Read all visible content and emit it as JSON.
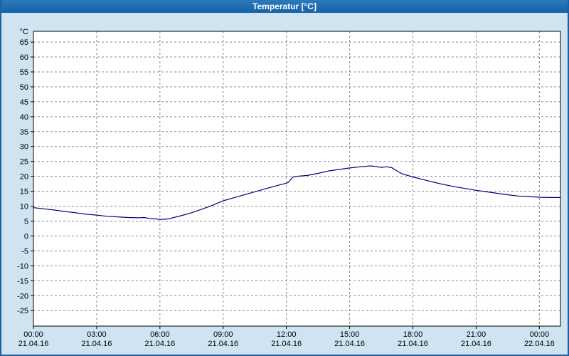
{
  "window": {
    "title": "Temperatur [°C]"
  },
  "colors": {
    "titlebar": "#1661a8",
    "background": "#cfe3f1",
    "plot_background": "#ffffff",
    "plot_border": "#000000",
    "grid": "#888888",
    "line": "#000080"
  },
  "chart_data": {
    "type": "line",
    "title": "Temperatur [°C]",
    "ylabel": "°C",
    "xlabel": "",
    "grid": true,
    "legend": "none",
    "xlim": [
      0,
      25
    ],
    "ylim": [
      -30.2,
      68.6
    ],
    "y_ticks": [
      65,
      60,
      55,
      50,
      45,
      40,
      35,
      30,
      25,
      20,
      15,
      10,
      5,
      0,
      -5,
      -10,
      -15,
      -20,
      -25
    ],
    "x_ticks": [
      {
        "hour": 0,
        "time": "00:00",
        "date": "21.04.16"
      },
      {
        "hour": 3,
        "time": "03:00",
        "date": "21.04.16"
      },
      {
        "hour": 6,
        "time": "06:00",
        "date": "21.04.16"
      },
      {
        "hour": 9,
        "time": "09:00",
        "date": "21.04.16"
      },
      {
        "hour": 12,
        "time": "12:00",
        "date": "21.04.16"
      },
      {
        "hour": 15,
        "time": "15:00",
        "date": "21.04.16"
      },
      {
        "hour": 18,
        "time": "18:00",
        "date": "21.04.16"
      },
      {
        "hour": 21,
        "time": "21:00",
        "date": "21.04.16"
      },
      {
        "hour": 24,
        "time": "00:00",
        "date": "22.04.16"
      }
    ],
    "series": [
      {
        "name": "Temperatur",
        "unit": "°C",
        "x": [
          0,
          0.5,
          1,
          1.5,
          2,
          2.5,
          3,
          3.5,
          4,
          4.5,
          5,
          5.25,
          5.5,
          6,
          6.25,
          6.5,
          7,
          7.5,
          8,
          8.5,
          9,
          9.5,
          10,
          10.5,
          11,
          11.5,
          12,
          12.1,
          12.3,
          12.5,
          13,
          13.5,
          14,
          14.5,
          15,
          15.25,
          15.5,
          16,
          16.25,
          16.5,
          16.75,
          17,
          17.25,
          17.5,
          18,
          18.5,
          19,
          19.5,
          20,
          20.5,
          21,
          21.5,
          22,
          22.5,
          23,
          23.5,
          24,
          24.5,
          25
        ],
        "y": [
          9.5,
          9.1,
          8.7,
          8.2,
          7.8,
          7.3,
          7.0,
          6.6,
          6.4,
          6.2,
          6.1,
          6.2,
          5.9,
          5.6,
          5.6,
          5.9,
          6.8,
          7.8,
          9.0,
          10.3,
          11.8,
          12.8,
          13.8,
          14.8,
          15.8,
          16.8,
          17.7,
          18.0,
          19.7,
          20.0,
          20.3,
          21.0,
          21.8,
          22.3,
          22.8,
          23.0,
          23.2,
          23.5,
          23.3,
          23.0,
          23.2,
          22.9,
          21.8,
          20.8,
          19.8,
          18.9,
          18.0,
          17.2,
          16.5,
          15.9,
          15.3,
          14.8,
          14.3,
          13.8,
          13.4,
          13.2,
          13.0,
          12.9,
          12.9
        ]
      }
    ]
  }
}
